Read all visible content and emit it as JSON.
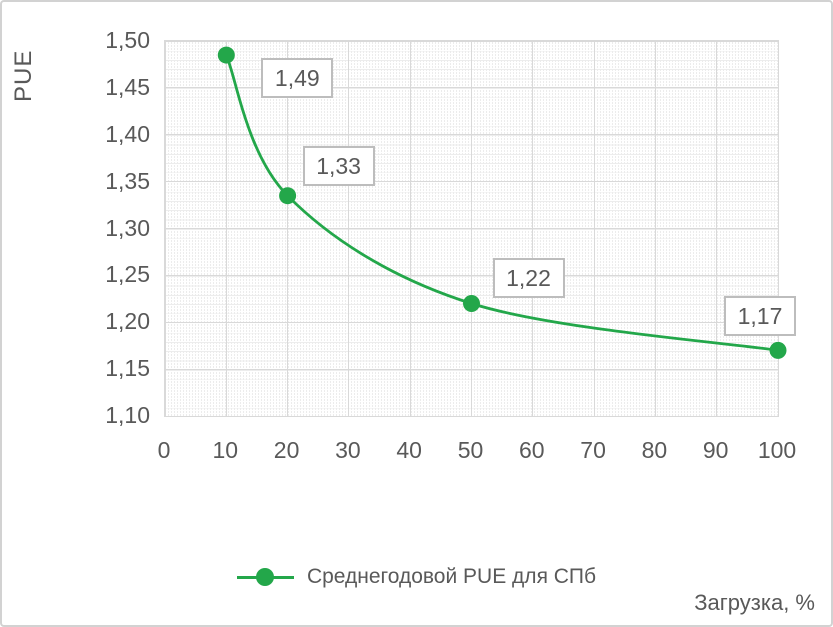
{
  "chart_data": {
    "type": "line",
    "title": "",
    "xlabel": "Загрузка, %",
    "ylabel": "PUE",
    "series": [
      {
        "name": "Среднегодовой PUE для СПб",
        "x": [
          10,
          20,
          50,
          100
        ],
        "y": [
          1.485,
          1.335,
          1.22,
          1.17
        ],
        "point_labels": [
          "1,49",
          "1,33",
          "1,22",
          "1,17"
        ],
        "color": "#23A74A",
        "marker": "circle",
        "smooth": true
      }
    ],
    "xlim": [
      0,
      100
    ],
    "ylim": [
      1.1,
      1.5
    ],
    "x_ticks": [
      0,
      10,
      20,
      30,
      40,
      50,
      60,
      70,
      80,
      90,
      100
    ],
    "y_ticks": [
      {
        "value": 1.5,
        "label": "1,50"
      },
      {
        "value": 1.45,
        "label": "1,45"
      },
      {
        "value": 1.4,
        "label": "1,40"
      },
      {
        "value": 1.35,
        "label": "1,35"
      },
      {
        "value": 1.3,
        "label": "1,30"
      },
      {
        "value": 1.25,
        "label": "1,25"
      },
      {
        "value": 1.2,
        "label": "1,20"
      },
      {
        "value": 1.15,
        "label": "1,15"
      },
      {
        "value": 1.1,
        "label": "1,10"
      }
    ],
    "grid": true,
    "legend_position": "bottom",
    "colors": {
      "series": "#23A74A",
      "major_grid": "#D9D9D9",
      "minor_grid": "#ECECEC",
      "text": "#595959",
      "label_box_border": "#BDBDBD"
    }
  },
  "legend": {
    "entry": "Среднегодовой PUE для СПб"
  },
  "axis_titles": {
    "y": "PUE",
    "x": "Загрузка, %"
  }
}
